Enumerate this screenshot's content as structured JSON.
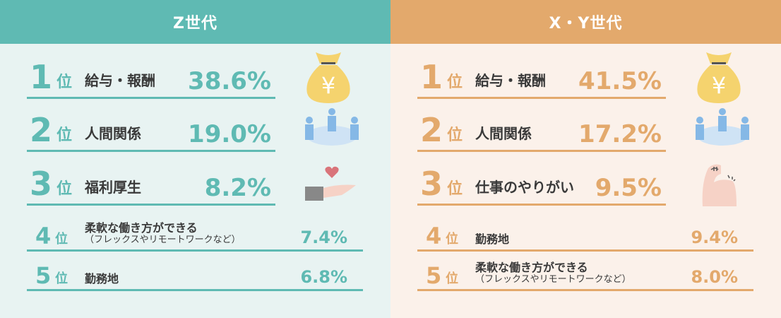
{
  "colors": {
    "z_accent": "#5fbab3",
    "xy_accent": "#e3a96c",
    "z_bg": "#e8f3f2",
    "xy_bg": "#fbf1ea"
  },
  "panels": [
    {
      "id": "z",
      "title": "Z世代",
      "rank_suffix": "位",
      "rows": [
        {
          "rank": "1",
          "label": "給与・報酬",
          "sub": "",
          "pct": "38.6%",
          "icon": "money-bag-icon"
        },
        {
          "rank": "2",
          "label": "人間関係",
          "sub": "",
          "pct": "19.0%",
          "icon": "people-icon"
        },
        {
          "rank": "3",
          "label": "福利厚生",
          "sub": "",
          "pct": "8.2%",
          "icon": "hand-heart-icon"
        },
        {
          "rank": "4",
          "label": "柔軟な働き方ができる",
          "sub": "（フレックスやリモートワークなど）",
          "pct": "7.4%"
        },
        {
          "rank": "5",
          "label": "勤務地",
          "sub": "",
          "pct": "6.8%"
        }
      ]
    },
    {
      "id": "xy",
      "title": "X・Y世代",
      "rank_suffix": "位",
      "rows": [
        {
          "rank": "1",
          "label": "給与・報酬",
          "sub": "",
          "pct": "41.5%",
          "icon": "money-bag-icon"
        },
        {
          "rank": "2",
          "label": "人間関係",
          "sub": "",
          "pct": "17.2%",
          "icon": "people-icon"
        },
        {
          "rank": "3",
          "label": "仕事のやりがい",
          "sub": "",
          "pct": "9.5%",
          "icon": "flexed-arm-icon"
        },
        {
          "rank": "4",
          "label": "勤務地",
          "sub": "",
          "pct": "9.4%"
        },
        {
          "rank": "5",
          "label": "柔軟な働き方ができる",
          "sub": "（フレックスやリモートワークなど）",
          "pct": "8.0%"
        }
      ]
    }
  ]
}
